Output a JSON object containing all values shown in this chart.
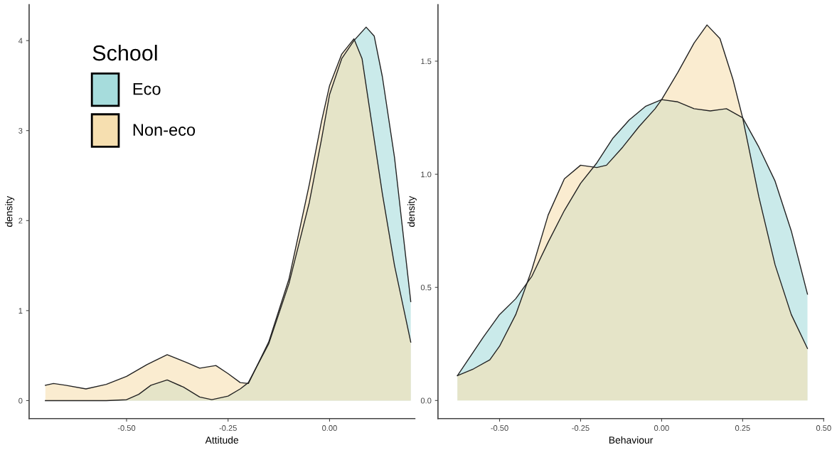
{
  "chart_data": [
    {
      "type": "area",
      "xlabel": "Attitude",
      "ylabel": "density",
      "legend_title": "School",
      "legend": "top left",
      "grid": false,
      "xlim": [
        -0.74,
        0.21
      ],
      "ylim": [
        -0.2,
        4.4
      ],
      "xticks": [
        {
          "value": -0.5,
          "label": "-0.50"
        },
        {
          "value": -0.25,
          "label": "-0.25"
        },
        {
          "value": 0,
          "label": "0.00"
        }
      ],
      "yticks": [
        0,
        1,
        2,
        3,
        4
      ],
      "series": [
        {
          "name": "Eco",
          "color": "#a6dcdc",
          "x": [
            -0.7,
            -0.55,
            -0.5,
            -0.47,
            -0.44,
            -0.4,
            -0.36,
            -0.32,
            -0.29,
            -0.25,
            -0.22,
            -0.2,
            -0.15,
            -0.1,
            -0.05,
            -0.02,
            0.0,
            0.03,
            0.06,
            0.09,
            0.11,
            0.13,
            0.16,
            0.2
          ],
          "values": [
            0,
            0,
            0.01,
            0.07,
            0.17,
            0.23,
            0.15,
            0.04,
            0.01,
            0.05,
            0.13,
            0.2,
            0.63,
            1.3,
            2.2,
            2.9,
            3.4,
            3.8,
            4.0,
            4.15,
            4.05,
            3.6,
            2.7,
            1.1
          ]
        },
        {
          "name": "Non-eco",
          "color": "#f6dfb0",
          "x": [
            -0.7,
            -0.68,
            -0.65,
            -0.6,
            -0.55,
            -0.5,
            -0.45,
            -0.4,
            -0.35,
            -0.32,
            -0.28,
            -0.25,
            -0.22,
            -0.2,
            -0.15,
            -0.1,
            -0.05,
            -0.02,
            0.0,
            0.03,
            0.06,
            0.08,
            0.1,
            0.13,
            0.16,
            0.2
          ],
          "values": [
            0.17,
            0.19,
            0.17,
            0.13,
            0.18,
            0.27,
            0.4,
            0.51,
            0.42,
            0.36,
            0.39,
            0.3,
            0.2,
            0.19,
            0.65,
            1.35,
            2.4,
            3.1,
            3.5,
            3.85,
            4.02,
            3.8,
            3.2,
            2.3,
            1.5,
            0.65
          ]
        }
      ]
    },
    {
      "type": "area",
      "xlabel": "Behaviour",
      "ylabel": "density",
      "grid": false,
      "xlim": [
        -0.69,
        0.5
      ],
      "ylim": [
        -0.08,
        1.75
      ],
      "xticks": [
        {
          "value": -0.5,
          "label": "-0.50"
        },
        {
          "value": -0.25,
          "label": "-0.25"
        },
        {
          "value": 0,
          "label": "0.00"
        },
        {
          "value": 0.25,
          "label": "0.25"
        },
        {
          "value": 0.5,
          "label": "0.50"
        }
      ],
      "yticks": [
        {
          "value": 0,
          "label": "0.0"
        },
        {
          "value": 0.5,
          "label": "0.5"
        },
        {
          "value": 1,
          "label": "1.0"
        },
        {
          "value": 1.5,
          "label": "1.5"
        }
      ],
      "series": [
        {
          "color": "#a6dcdc",
          "x": [
            -0.63,
            -0.55,
            -0.5,
            -0.45,
            -0.4,
            -0.35,
            -0.3,
            -0.25,
            -0.2,
            -0.15,
            -0.1,
            -0.05,
            0.0,
            0.05,
            0.1,
            0.15,
            0.2,
            0.25,
            0.3,
            0.35,
            0.4,
            0.45
          ],
          "values": [
            0.11,
            0.28,
            0.38,
            0.45,
            0.55,
            0.7,
            0.84,
            0.96,
            1.05,
            1.16,
            1.24,
            1.3,
            1.33,
            1.32,
            1.29,
            1.28,
            1.29,
            1.25,
            1.12,
            0.97,
            0.75,
            0.47
          ]
        },
        {
          "color": "#f6dfb0",
          "x": [
            -0.63,
            -0.58,
            -0.53,
            -0.5,
            -0.45,
            -0.4,
            -0.35,
            -0.3,
            -0.25,
            -0.2,
            -0.17,
            -0.12,
            -0.07,
            -0.02,
            0.0,
            0.05,
            0.1,
            0.14,
            0.18,
            0.22,
            0.25,
            0.3,
            0.35,
            0.4,
            0.45
          ],
          "values": [
            0.11,
            0.14,
            0.18,
            0.24,
            0.38,
            0.58,
            0.82,
            0.98,
            1.04,
            1.03,
            1.04,
            1.12,
            1.21,
            1.29,
            1.33,
            1.45,
            1.58,
            1.66,
            1.6,
            1.42,
            1.25,
            0.9,
            0.6,
            0.38,
            0.23
          ]
        }
      ]
    }
  ]
}
